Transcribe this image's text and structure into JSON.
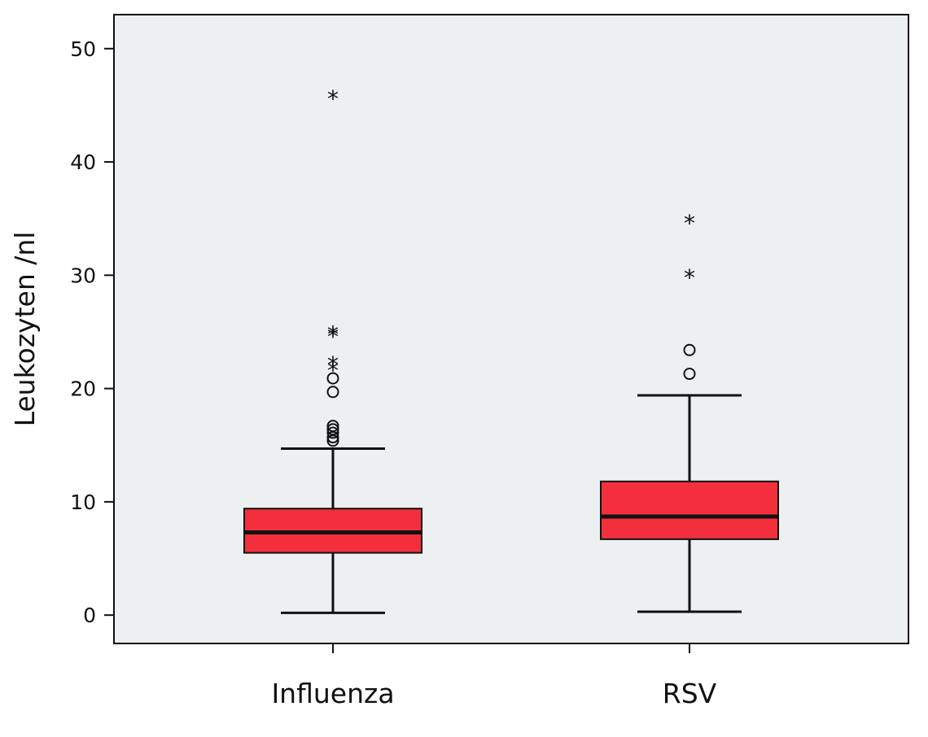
{
  "chart_data": {
    "type": "boxplot",
    "title": "",
    "xlabel": "",
    "ylabel": "Leukozyten /nl",
    "ylim": [
      -2.5,
      53
    ],
    "yticks": [
      0,
      10,
      20,
      30,
      40,
      50
    ],
    "grid": false,
    "legend": "none",
    "colors": {
      "plot_bg": "#ecf0f1",
      "box_fill": "#f42f3d",
      "line": "#111111"
    },
    "categories": [
      "Influenza",
      "RSV"
    ],
    "boxes": [
      {
        "category": "Influenza",
        "whisker_low": 0.2,
        "q1": 5.5,
        "median": 7.3,
        "q3": 9.4,
        "whisker_high": 14.7,
        "outliers": [
          15.4,
          15.7,
          16.1,
          16.4,
          16.7,
          19.7,
          20.9
        ],
        "extremes": [
          21.9,
          22.4,
          24.9,
          25.1,
          45.9
        ]
      },
      {
        "category": "RSV",
        "whisker_low": 0.3,
        "q1": 6.7,
        "median": 8.7,
        "q3": 11.8,
        "whisker_high": 19.4,
        "outliers": [
          21.3,
          23.4
        ],
        "extremes": [
          30.1,
          34.9
        ]
      }
    ]
  }
}
